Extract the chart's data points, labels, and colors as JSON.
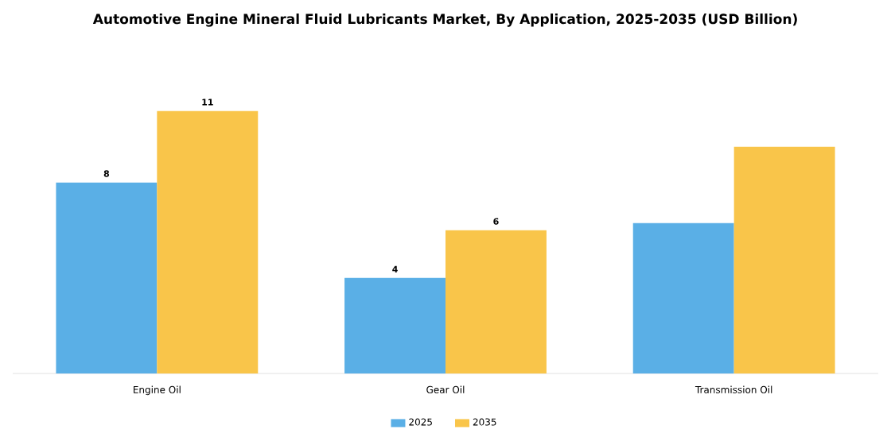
{
  "chart_data": {
    "type": "bar",
    "title": "Automotive Engine Mineral Fluid Lubricants Market, By Application, 2025-2035 (USD Billion)",
    "categories": [
      "Engine Oil",
      "Gear Oil",
      "Transmission Oil"
    ],
    "series": [
      {
        "name": "2025",
        "color": "#5aafe6",
        "values": [
          8,
          4,
          6.3
        ],
        "value_labels": [
          "8",
          "4",
          null
        ]
      },
      {
        "name": "2035",
        "color": "#f9c54a",
        "values": [
          11,
          6,
          9.5
        ],
        "value_labels": [
          "11",
          "6",
          null
        ]
      }
    ],
    "legend": "bottom"
  }
}
